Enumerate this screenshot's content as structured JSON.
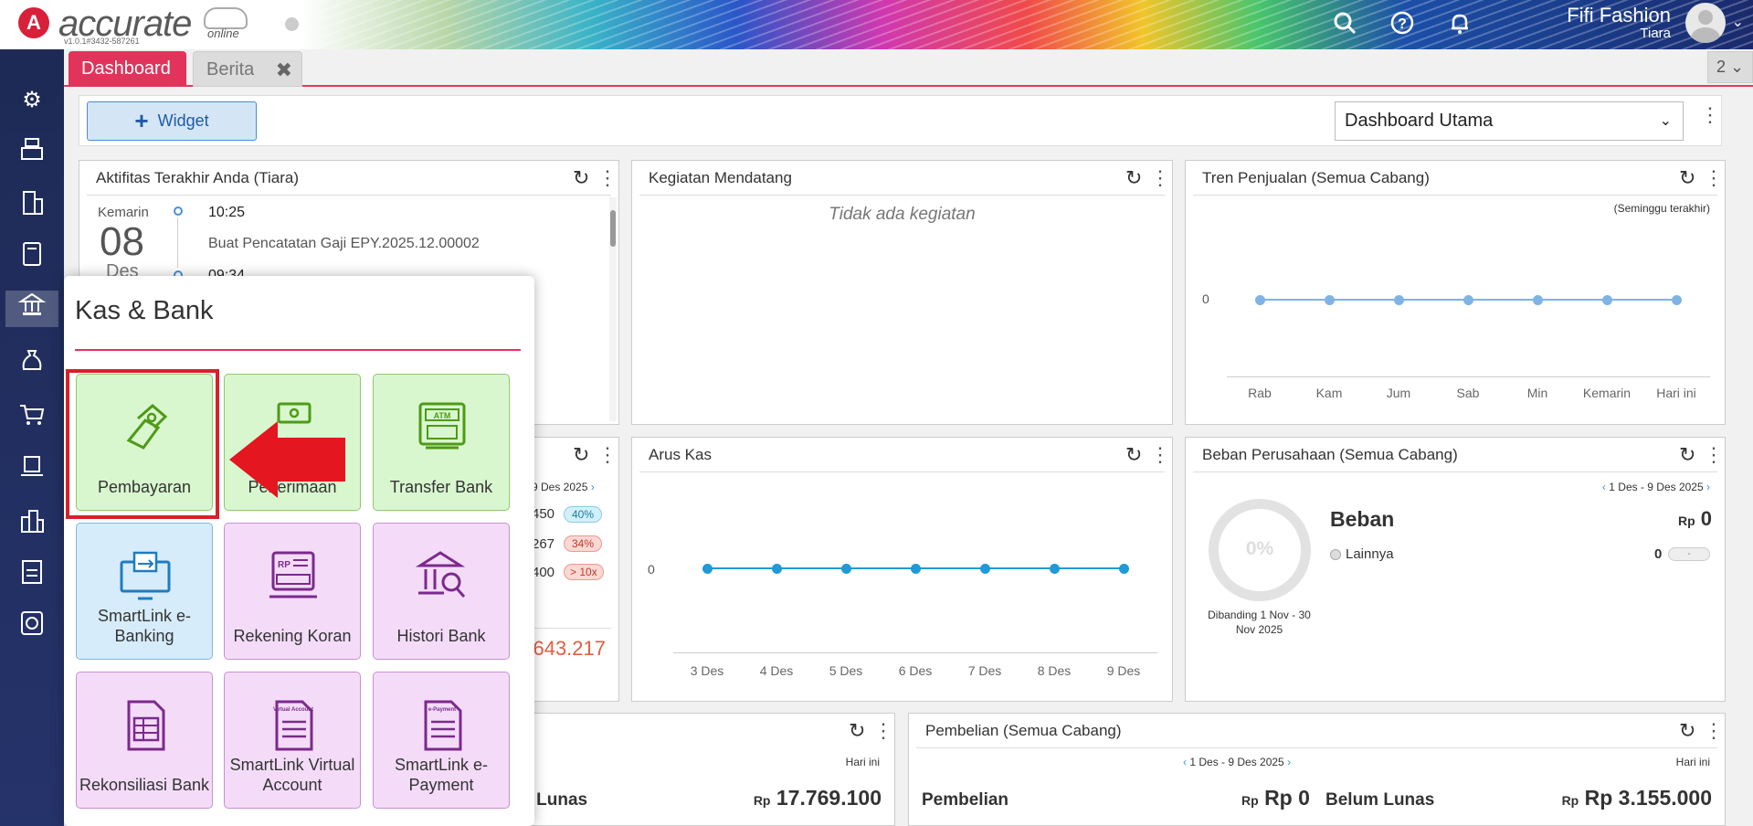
{
  "app": {
    "logo": "accurate",
    "logo_sub": "online",
    "version": "v1.0.1#3432-587261",
    "company": "Fifi Fashion",
    "user": "Tiara"
  },
  "header_icons": [
    "search-icon",
    "help-icon",
    "bell-icon"
  ],
  "tabs": [
    {
      "label": "Dashboard"
    },
    {
      "label": "Berita"
    }
  ],
  "tab_count": "2",
  "toolbar": {
    "widget_label": "Widget",
    "dashboard_select": "Dashboard Utama"
  },
  "sidebar": [
    "gear-icon",
    "cash-register-icon",
    "building-icon",
    "book-icon",
    "bank-icon",
    "money-bag-icon",
    "cart-icon",
    "warehouse-cart-icon",
    "city-icon",
    "tax-icon",
    "report-icon"
  ],
  "widgets": {
    "activity": {
      "title": "Aktifitas Terakhir Anda (Tiara)",
      "day_label": "Kemarin",
      "day": "08",
      "month": "Des",
      "time1": "10:25",
      "desc1": "Buat Pencatatan Gaji EPY.2025.12.00002",
      "time2": "09:34"
    },
    "upcoming": {
      "title": "Kegiatan Mendatang",
      "empty": "Tidak ada kegiatan"
    },
    "sales_trend": {
      "title": "Tren Penjualan (Semua Cabang)",
      "period": "(Seminggu terakhir)",
      "y_tick": "0"
    },
    "hidden_widget": {
      "date": "9 Des 2025",
      "rows": [
        {
          "value": "450",
          "badge": "40%"
        },
        {
          "value": "267",
          "badge": "34%"
        },
        {
          "value": "400",
          "badge": "> 10x"
        }
      ],
      "total": "643.217"
    },
    "cash_flow": {
      "title": "Arus Kas",
      "y_tick": "0"
    },
    "expenses": {
      "title": "Beban Perusahaan (Semua Cabang)",
      "range": "1 Des - 9 Des 2025",
      "pct": "0%",
      "label": "Beban",
      "cur": "Rp",
      "value": "0",
      "item": "Lainnya",
      "item_value": "0",
      "item_badge": "-",
      "compare": "Dibanding 1 Nov - 30 Nov 2025"
    },
    "receivable": {
      "period": "Hari ini",
      "label": "m Lunas",
      "cur": "Rp",
      "value": "17.769.100"
    },
    "purchases": {
      "title": "Pembelian (Semua Cabang)",
      "range": "1 Des - 9 Des 2025",
      "period": "Hari ini",
      "label1": "Pembelian",
      "cur1": "Rp",
      "value1": "Rp 0",
      "label2": "Belum Lunas",
      "cur2": "Rp",
      "value2": "Rp 3.155.000"
    }
  },
  "chart_data": [
    {
      "type": "line",
      "title": "Tren Penjualan (Semua Cabang)",
      "categories": [
        "Rab",
        "Kam",
        "Jum",
        "Sab",
        "Min",
        "Kemarin",
        "Hari ini"
      ],
      "values": [
        0,
        0,
        0,
        0,
        0,
        0,
        0
      ]
    },
    {
      "type": "line",
      "title": "Arus Kas",
      "categories": [
        "3 Des",
        "4 Des",
        "5 Des",
        "6 Des",
        "7 Des",
        "8 Des",
        "9 Des"
      ],
      "values": [
        0,
        0,
        0,
        0,
        0,
        0,
        0
      ]
    }
  ],
  "popup": {
    "title": "Kas & Bank",
    "tiles": [
      {
        "label": "Pembayaran",
        "icon": "payment-icon"
      },
      {
        "label": "Penerimaan",
        "icon": "receipt-icon"
      },
      {
        "label": "Transfer Bank",
        "icon": "atm-icon"
      },
      {
        "label": "SmartLink e-Banking",
        "icon": "ebanking-icon"
      },
      {
        "label": "Rekening Koran",
        "icon": "statement-icon"
      },
      {
        "label": "Histori Bank",
        "icon": "bank-history-icon"
      },
      {
        "label": "Rekonsiliasi Bank",
        "icon": "reconcile-icon"
      },
      {
        "label": "SmartLink Virtual Account",
        "icon": "virtual-account-icon",
        "icon_text": "Virtual Account"
      },
      {
        "label": "SmartLink e-Payment",
        "icon": "epayment-icon",
        "icon_text": "e-Payment"
      }
    ]
  },
  "colors": {
    "brand": "#e2335a",
    "sidebar": "#1e2a55",
    "tile_green": "#d9f7cf",
    "tile_blue": "#d6ecfb",
    "tile_purple": "#f4dcf9",
    "arrow": "#e4161f"
  }
}
